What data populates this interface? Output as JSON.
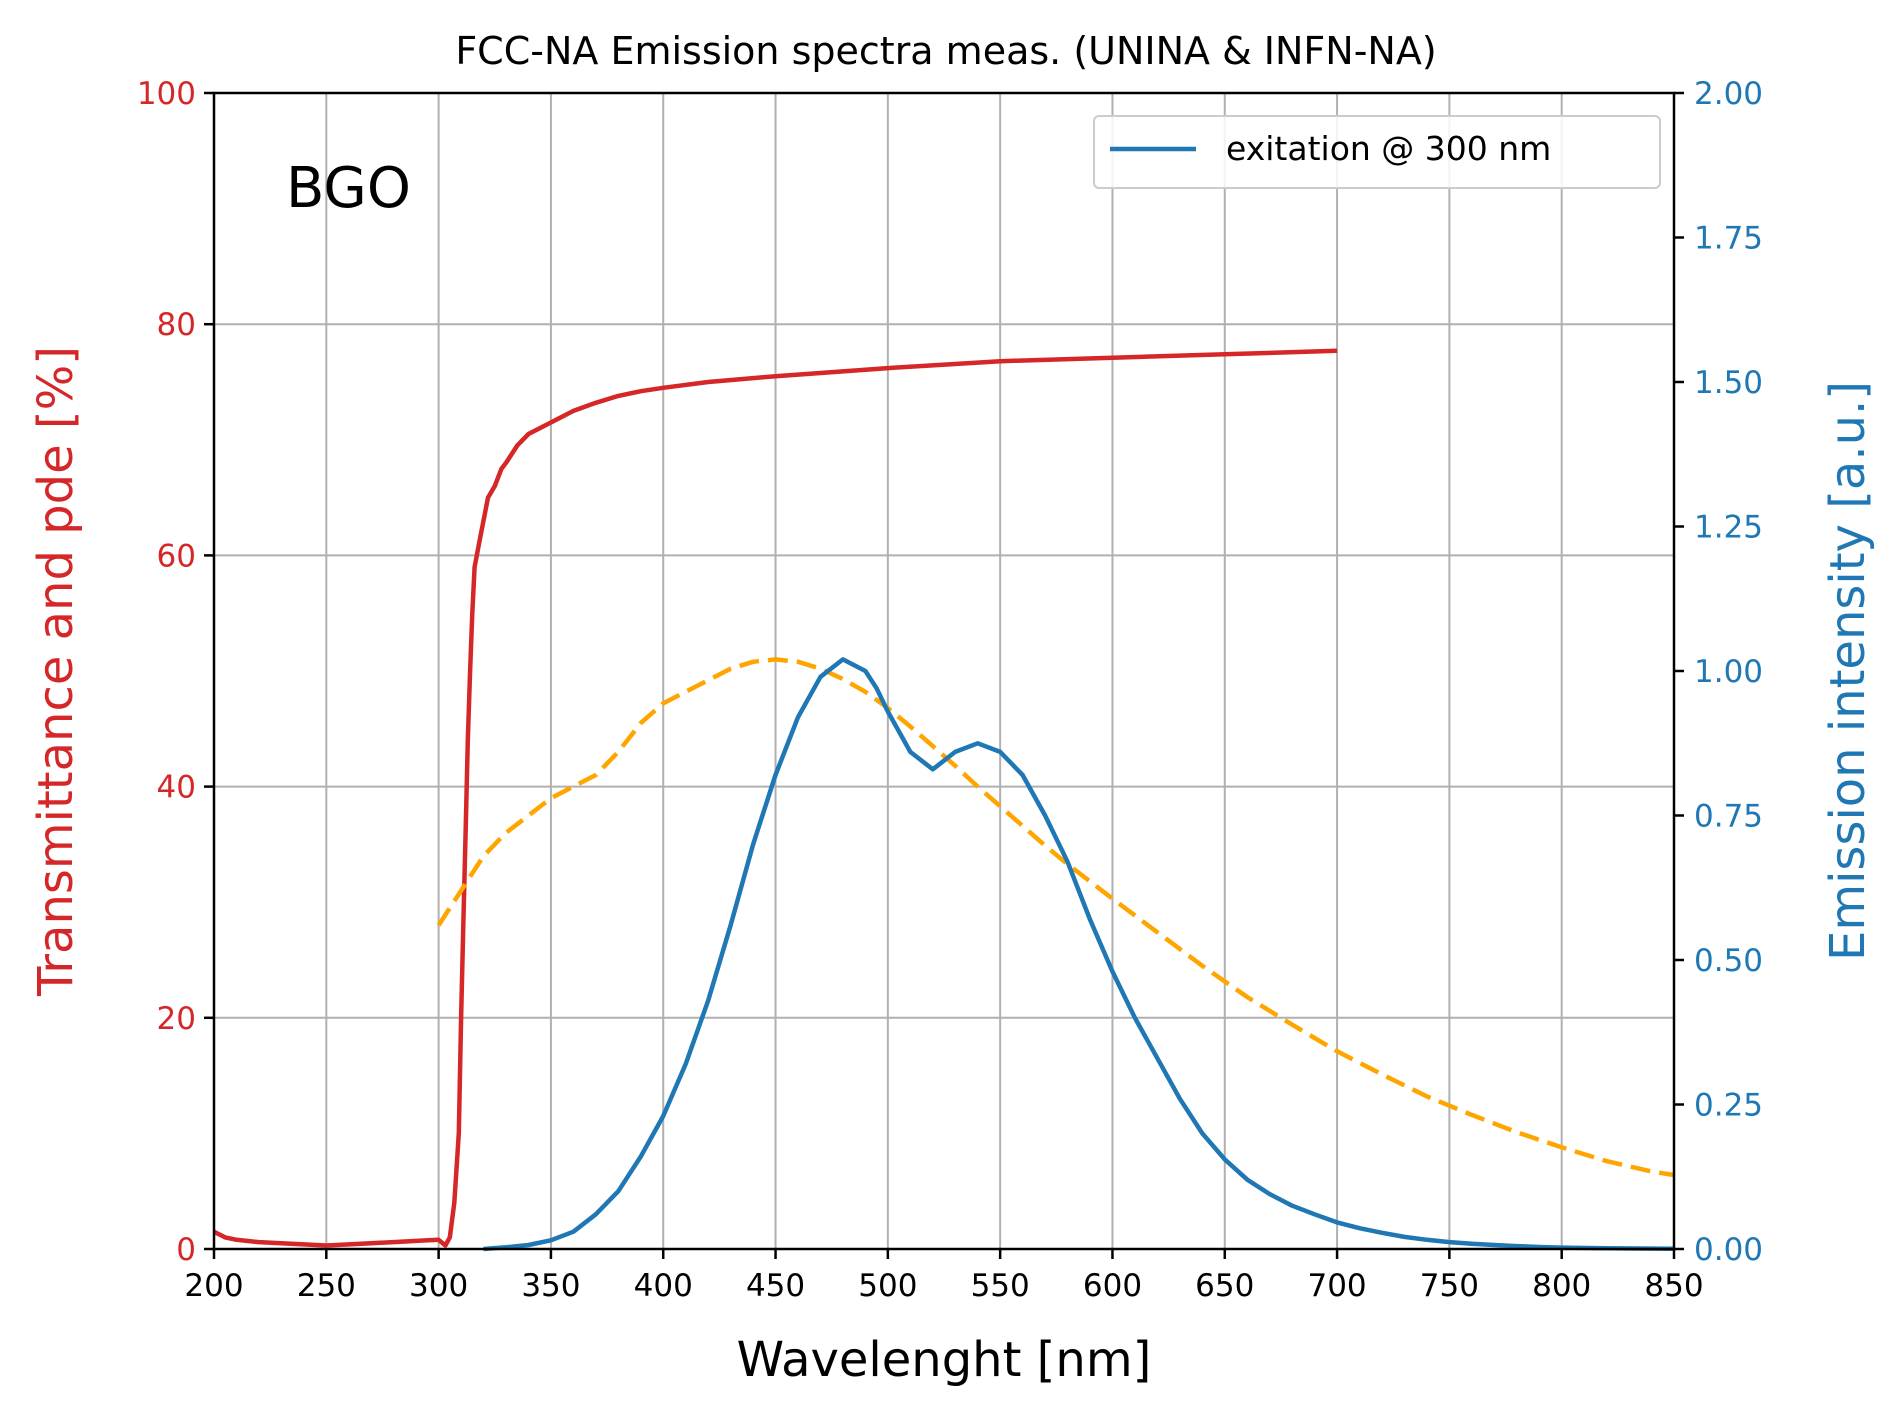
{
  "chart_data": {
    "type": "line",
    "title": "FCC-NA Emission spectra meas. (UNINA & INFN-NA)",
    "xlabel": "Wavelenght [nm]",
    "ylabel_left": "Transmittance and pde [%]",
    "ylabel_right": "Emission intensity [a.u.]",
    "annotation": "BGO",
    "xlim": [
      200,
      850
    ],
    "ylim_left": [
      0,
      100
    ],
    "ylim_right": [
      0,
      2.0
    ],
    "x_ticks": [
      "200",
      "250",
      "300",
      "350",
      "400",
      "450",
      "500",
      "550",
      "600",
      "650",
      "700",
      "750",
      "800",
      "850"
    ],
    "y_left_ticks": [
      "0",
      "20",
      "40",
      "60",
      "80",
      "100"
    ],
    "y_right_ticks": [
      "0.00",
      "0.25",
      "0.50",
      "0.75",
      "1.00",
      "1.25",
      "1.50",
      "1.75",
      "2.00"
    ],
    "grid": true,
    "legend": {
      "position": "top-right",
      "entries": [
        "exitation @ 300 nm"
      ]
    },
    "series": [
      {
        "axis": "left",
        "color": "#d62728",
        "style": "solid",
        "x": [
          200,
          205,
          210,
          220,
          230,
          240,
          250,
          260,
          270,
          280,
          290,
          300,
          303,
          305,
          307,
          309,
          310,
          311,
          312,
          313,
          314,
          315,
          316,
          318,
          320,
          322,
          325,
          328,
          330,
          335,
          340,
          345,
          350,
          360,
          370,
          380,
          390,
          400,
          420,
          450,
          500,
          550,
          600,
          650,
          700
        ],
        "y": [
          1.5,
          1,
          0.8,
          0.6,
          0.5,
          0.4,
          0.3,
          0.4,
          0.5,
          0.6,
          0.7,
          0.8,
          0.3,
          1,
          4,
          10,
          20,
          28,
          36,
          44,
          50,
          55,
          59,
          61,
          63,
          65,
          66,
          67.5,
          68,
          69.5,
          70.5,
          71,
          71.5,
          72.5,
          73.2,
          73.8,
          74.2,
          74.5,
          75,
          75.5,
          76.2,
          76.8,
          77.1,
          77.4,
          77.7
        ]
      },
      {
        "axis": "left",
        "color": "#ffa500",
        "style": "dashed",
        "x": [
          300,
          310,
          320,
          330,
          340,
          350,
          360,
          370,
          380,
          390,
          400,
          410,
          420,
          430,
          440,
          450,
          460,
          470,
          480,
          490,
          500,
          510,
          520,
          530,
          540,
          550,
          560,
          570,
          580,
          590,
          600,
          620,
          640,
          660,
          680,
          700,
          720,
          740,
          760,
          780,
          800,
          820,
          840,
          850
        ],
        "y": [
          28,
          31,
          34,
          36,
          37.5,
          39,
          40,
          41,
          43,
          45.5,
          47.2,
          48.2,
          49.2,
          50.2,
          50.8,
          51,
          50.8,
          50.2,
          49.3,
          48.2,
          46.8,
          45.2,
          43.5,
          41.8,
          40,
          38.3,
          36.6,
          34.9,
          33.3,
          31.8,
          30.3,
          27.4,
          24.5,
          21.8,
          19.4,
          17.1,
          15.1,
          13.2,
          11.6,
          10.1,
          8.8,
          7.6,
          6.7,
          6.4
        ]
      },
      {
        "axis": "right",
        "name": "exitation @ 300 nm",
        "color": "#1f77b4",
        "style": "solid",
        "x": [
          320,
          330,
          340,
          350,
          360,
          370,
          380,
          390,
          400,
          410,
          420,
          430,
          440,
          450,
          460,
          470,
          480,
          490,
          495,
          500,
          510,
          520,
          530,
          540,
          550,
          560,
          570,
          580,
          590,
          600,
          610,
          620,
          630,
          640,
          650,
          660,
          670,
          680,
          690,
          700,
          710,
          720,
          730,
          740,
          750,
          760,
          770,
          780,
          790,
          800,
          820,
          850
        ],
        "y": [
          0,
          0.003,
          0.007,
          0.015,
          0.03,
          0.06,
          0.1,
          0.16,
          0.23,
          0.32,
          0.43,
          0.56,
          0.7,
          0.82,
          0.92,
          0.99,
          1.02,
          1.0,
          0.97,
          0.93,
          0.86,
          0.83,
          0.86,
          0.875,
          0.86,
          0.82,
          0.75,
          0.67,
          0.57,
          0.48,
          0.4,
          0.33,
          0.26,
          0.2,
          0.155,
          0.12,
          0.095,
          0.075,
          0.06,
          0.046,
          0.036,
          0.028,
          0.021,
          0.016,
          0.012,
          0.009,
          0.007,
          0.005,
          0.0035,
          0.0025,
          0.0012,
          0.0003
        ]
      }
    ]
  }
}
